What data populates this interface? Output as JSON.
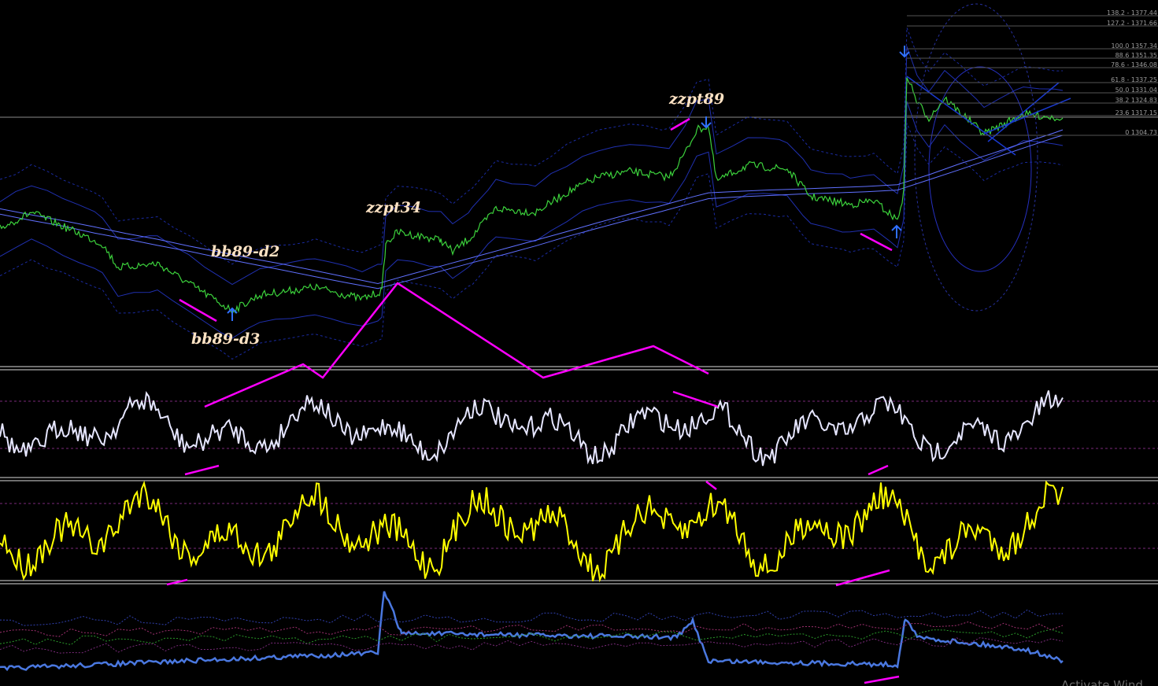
{
  "annotations": {
    "bb89_d2": "bb89-d2",
    "bb89_d3": "bb89-d3",
    "zzpt34": "zzpt34",
    "zzpt89": "zzpt89"
  },
  "fib_levels": [
    "138.2 - 1377.44",
    "127.2 - 1371.66",
    "100.0 1357.34",
    "88.6 1351.35",
    "78.6 - 1346.08",
    "61.8 - 1337.25",
    "50.0 1331.04",
    "38.2 1324.83",
    "23.6 1317.15",
    "0 1304.73"
  ],
  "watermark": "Activate Wind"
}
